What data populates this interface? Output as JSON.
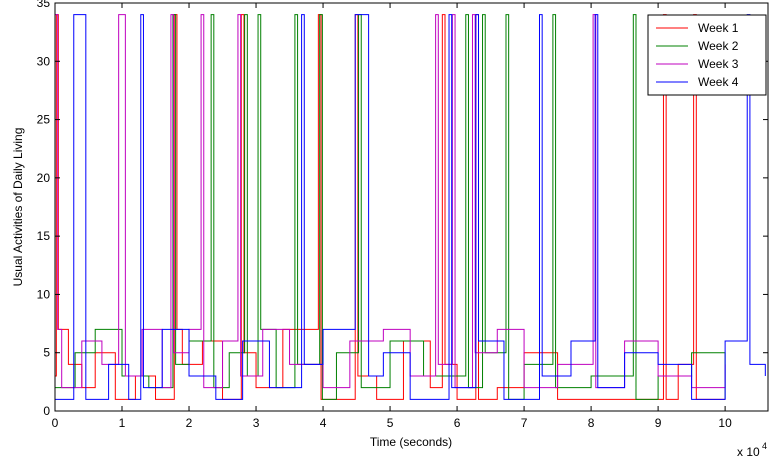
{
  "chart_data": {
    "type": "stairs",
    "x_label": "Time (seconds)",
    "y_label": "Usual Activities of Daily Living",
    "axis_multiplier": {
      "base": "x 10",
      "exponent": "4"
    },
    "xlim": [
      0,
      10.64
    ],
    "ylim": [
      0,
      35
    ],
    "xticks": [
      0,
      1,
      2,
      3,
      4,
      5,
      6,
      7,
      8,
      9,
      10
    ],
    "yticks": [
      0,
      5,
      10,
      15,
      20,
      25,
      30,
      35
    ],
    "legend": "top-right",
    "series": [
      {
        "name": "Week 1",
        "color": "#ff0000",
        "x": [
          0,
          0.02,
          0.05,
          0.2,
          0.4,
          0.6,
          0.9,
          1.2,
          1.5,
          1.78,
          1.82,
          1.9,
          2.2,
          2.5,
          2.78,
          2.82,
          3.0,
          3.4,
          3.93,
          3.97,
          4.2,
          4.48,
          4.52,
          4.8,
          5.2,
          5.6,
          5.78,
          5.82,
          6.0,
          6.28,
          6.32,
          6.6,
          7.0,
          7.5,
          8.0,
          8.5,
          9.08,
          9.12,
          9.3,
          9.53,
          9.57,
          9.8,
          10.0
        ],
        "values": [
          3,
          34,
          7,
          4,
          2,
          5,
          1,
          3,
          1,
          34,
          7,
          4,
          6,
          1,
          34,
          5,
          2,
          7,
          34,
          1,
          1,
          34,
          3,
          1,
          6,
          2,
          34,
          4,
          1,
          34,
          1,
          2,
          5,
          1,
          1,
          1,
          34,
          1,
          4,
          34,
          1,
          1,
          1
        ]
      },
      {
        "name": "Week 2",
        "color": "#008000",
        "x": [
          0,
          0.3,
          0.6,
          1.0,
          1.4,
          1.76,
          1.8,
          2.0,
          2.33,
          2.37,
          2.6,
          2.83,
          2.87,
          3.03,
          3.07,
          3.3,
          3.58,
          3.62,
          3.95,
          3.99,
          4.2,
          4.53,
          4.57,
          5.0,
          5.5,
          6.13,
          6.17,
          6.38,
          6.42,
          6.73,
          6.77,
          7.0,
          7.43,
          7.47,
          8.0,
          8.63,
          8.67,
          9.0,
          9.5,
          10.0
        ],
        "values": [
          2,
          5,
          7,
          3,
          2,
          34,
          4,
          6,
          34,
          2,
          5,
          34,
          3,
          34,
          7,
          2,
          34,
          4,
          34,
          1,
          5,
          34,
          2,
          6,
          3,
          34,
          2,
          34,
          5,
          34,
          1,
          4,
          34,
          2,
          3,
          34,
          1,
          3,
          5,
          1
        ]
      },
      {
        "name": "Week 3",
        "color": "#bf00bf",
        "x": [
          0,
          0.04,
          0.1,
          0.4,
          0.7,
          0.95,
          1.05,
          1.3,
          1.6,
          1.73,
          1.77,
          2.0,
          2.18,
          2.22,
          2.5,
          2.73,
          2.77,
          3.1,
          3.5,
          4.0,
          4.4,
          4.9,
          5.3,
          5.68,
          5.72,
          5.93,
          5.97,
          6.23,
          6.27,
          6.6,
          7.0,
          7.5,
          8.03,
          8.07,
          8.5,
          9.0,
          9.5,
          10.0
        ],
        "values": [
          34,
          7,
          2,
          6,
          4,
          34,
          3,
          7,
          2,
          34,
          5,
          7,
          34,
          2,
          6,
          34,
          3,
          7,
          4,
          2,
          6,
          7,
          3,
          34,
          4,
          34,
          2,
          34,
          5,
          7,
          2,
          4,
          34,
          2,
          6,
          3,
          2,
          4
        ]
      },
      {
        "name": "Week 4",
        "color": "#0000ff",
        "x": [
          0,
          0.28,
          0.46,
          0.8,
          1.1,
          1.28,
          1.32,
          1.6,
          2.0,
          2.4,
          2.8,
          3.2,
          3.68,
          3.72,
          4.0,
          4.48,
          4.68,
          4.9,
          5.3,
          5.88,
          5.92,
          6.28,
          6.32,
          6.7,
          7.23,
          7.27,
          7.7,
          8.06,
          8.1,
          8.5,
          9.0,
          9.5,
          10.0,
          10.33,
          10.37,
          10.6
        ],
        "values": [
          1,
          34,
          1,
          4,
          1,
          34,
          2,
          7,
          3,
          1,
          6,
          2,
          34,
          4,
          7,
          34,
          3,
          5,
          1,
          34,
          2,
          34,
          6,
          1,
          34,
          3,
          6,
          34,
          2,
          5,
          4,
          1,
          6,
          34,
          4,
          3
        ]
      }
    ]
  }
}
